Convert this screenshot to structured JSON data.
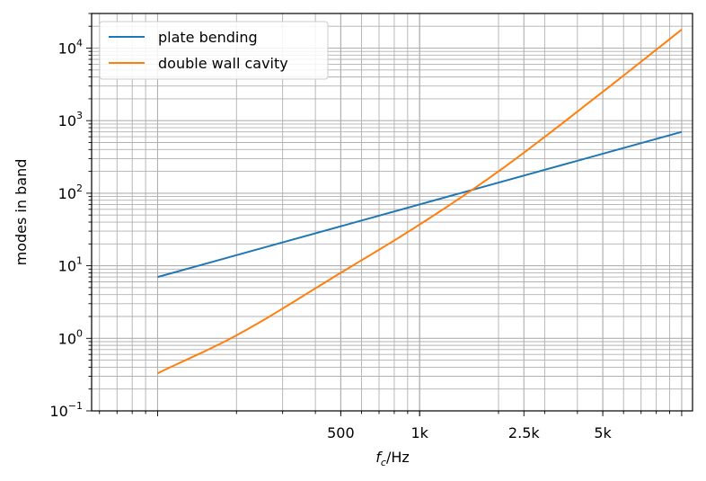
{
  "chart_data": {
    "type": "line",
    "title": "",
    "xlabel": "f_c/Hz",
    "xlabel_main": "f",
    "xlabel_sub": "c",
    "xlabel_rest": "/Hz",
    "ylabel": "modes in band",
    "xscale": "log",
    "yscale": "log",
    "xlim": [
      56,
      11000
    ],
    "ylim": [
      0.1,
      30000
    ],
    "grid": true,
    "legend_position": "top-left",
    "x_ticks": [
      {
        "value": 500,
        "label": "500"
      },
      {
        "value": 1000,
        "label": "1k"
      },
      {
        "value": 2500,
        "label": "2.5k"
      },
      {
        "value": 5000,
        "label": "5k"
      }
    ],
    "y_ticks": [
      {
        "value": 0.1,
        "base": "10",
        "exp": "−1"
      },
      {
        "value": 1,
        "base": "10",
        "exp": "0"
      },
      {
        "value": 10,
        "base": "10",
        "exp": "1"
      },
      {
        "value": 100,
        "base": "10",
        "exp": "2"
      },
      {
        "value": 1000,
        "base": "10",
        "exp": "3"
      },
      {
        "value": 10000,
        "base": "10",
        "exp": "4"
      }
    ],
    "series": [
      {
        "name": "plate bending",
        "color": "#1f77b4",
        "x": [
          100,
          10000
        ],
        "y": [
          7,
          700
        ]
      },
      {
        "name": "double wall cavity",
        "color": "#ff7f0e",
        "x": [
          100,
          200,
          500,
          1000,
          2000,
          5000,
          10000
        ],
        "y": [
          0.33,
          1.1,
          8,
          37,
          200,
          2500,
          18000
        ]
      }
    ]
  }
}
